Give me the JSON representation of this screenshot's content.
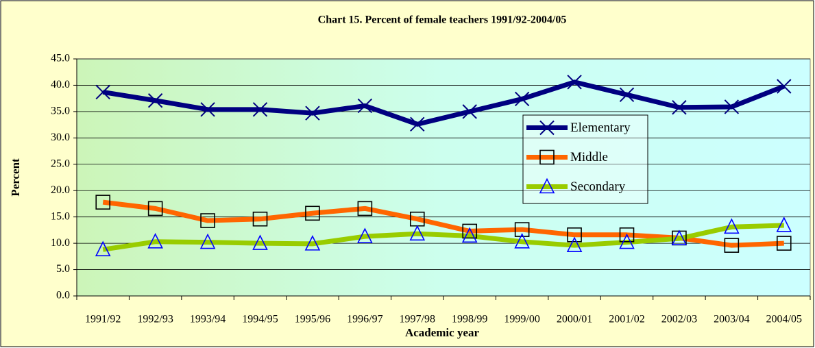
{
  "chart_data": {
    "type": "line",
    "title": "Chart 15. Percent of female teachers 1991/92-2004/05",
    "x_label": "Academic year",
    "y_label": "Percent",
    "categories": [
      "1991/92",
      "1992/93",
      "1993/94",
      "1994/95",
      "1995/96",
      "1996/97",
      "1997/98",
      "1998/99",
      "1999/00",
      "2000/01",
      "2001/02",
      "2002/03",
      "2003/04",
      "2004/05"
    ],
    "series": [
      {
        "name": "Elementary",
        "color": "#000080",
        "marker": "x",
        "marker_color": "#000080",
        "values": [
          38.7,
          37.1,
          35.4,
          35.4,
          34.7,
          36.1,
          32.6,
          35.0,
          37.4,
          40.6,
          38.2,
          35.8,
          35.9,
          39.8
        ]
      },
      {
        "name": "Middle",
        "color": "#ff6600",
        "marker": "square",
        "marker_color": "#000000",
        "values": [
          17.8,
          16.6,
          14.3,
          14.6,
          15.7,
          16.6,
          14.6,
          12.3,
          12.6,
          11.6,
          11.6,
          11.0,
          9.6,
          10.0
        ]
      },
      {
        "name": "Secondary",
        "color": "#99cc00",
        "marker": "triangle",
        "marker_color": "#0000ff",
        "values": [
          8.8,
          10.3,
          10.2,
          10.0,
          9.9,
          11.3,
          11.8,
          11.4,
          10.3,
          9.6,
          10.2,
          10.9,
          13.1,
          13.4
        ]
      }
    ],
    "ylim": [
      0,
      45
    ],
    "yticks": [
      {
        "value": 0,
        "label": "0.0"
      },
      {
        "value": 5,
        "label": "5.0"
      },
      {
        "value": 10,
        "label": "10.0"
      },
      {
        "value": 15,
        "label": "15.0"
      },
      {
        "value": 20,
        "label": "20.0"
      },
      {
        "value": 25,
        "label": "25.0"
      },
      {
        "value": 30,
        "label": "30.0"
      },
      {
        "value": 35,
        "label": "35.0"
      },
      {
        "value": 40,
        "label": "40.0"
      },
      {
        "value": 45,
        "label": "45.0"
      }
    ],
    "grid": true
  }
}
